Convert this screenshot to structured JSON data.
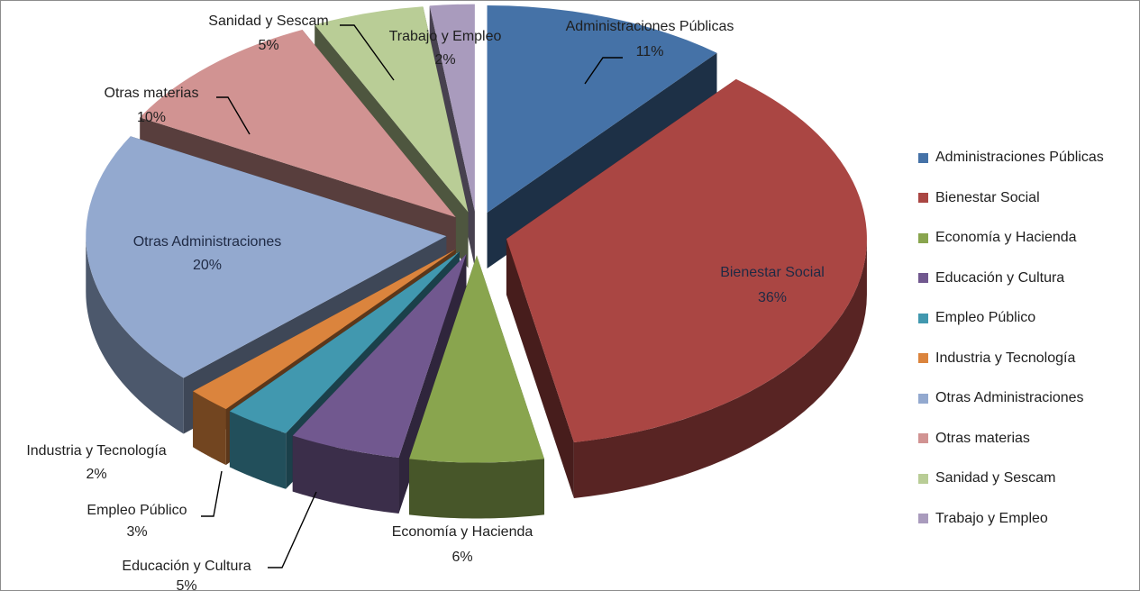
{
  "chart_data": {
    "type": "pie",
    "style": "3d-exploded",
    "title": "",
    "legend_position": "right",
    "slices": [
      {
        "label": "Administraciones Públicas",
        "value": 11,
        "display": "11%",
        "color": "#4572A7"
      },
      {
        "label": "Bienestar Social",
        "value": 36,
        "display": "36%",
        "color": "#AA4643"
      },
      {
        "label": "Economía y Hacienda",
        "value": 6,
        "display": "6%",
        "color": "#89A54E"
      },
      {
        "label": "Educación y Cultura",
        "value": 5,
        "display": "5%",
        "color": "#71588F"
      },
      {
        "label": "Empleo Público",
        "value": 3,
        "display": "3%",
        "color": "#4198AF"
      },
      {
        "label": "Industria y Tecnología",
        "value": 2,
        "display": "2%",
        "color": "#DB843D"
      },
      {
        "label": "Otras Administraciones",
        "value": 20,
        "display": "20%",
        "color": "#93A9CF"
      },
      {
        "label": "Otras materias",
        "value": 10,
        "display": "10%",
        "color": "#D19392"
      },
      {
        "label": "Sanidad y Sescam",
        "value": 5,
        "display": "5%",
        "color": "#B9CD96"
      },
      {
        "label": "Trabajo y Empleo",
        "value": 2,
        "display": "2%",
        "color": "#A99BBD"
      }
    ]
  }
}
